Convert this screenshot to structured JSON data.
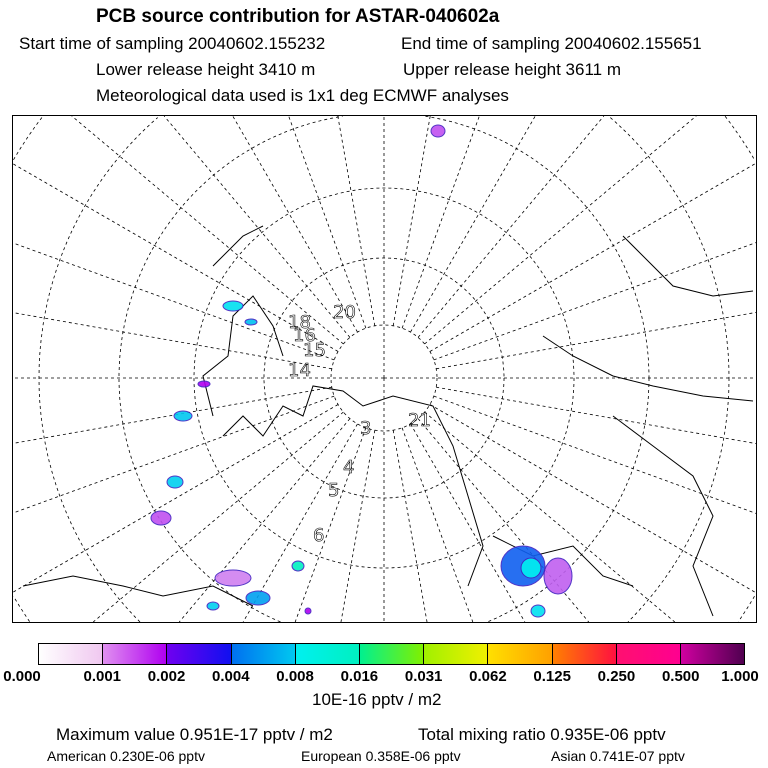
{
  "title": "PCB source contribution for ASTAR-040602a",
  "header": {
    "start": "Start time of sampling 20040602.155232",
    "end": "End time of sampling 20040602.155651",
    "lower": "Lower release height 3410 m",
    "upper": "Upper release height 3611 m",
    "met": "Meteorological data used is 1x1 deg ECMWF analyses"
  },
  "map": {
    "labels": [
      "20",
      "18",
      "16",
      "15",
      "14",
      "4",
      "5",
      "6",
      "21",
      "3"
    ]
  },
  "colorbar": {
    "ticks": [
      "0.000",
      "0.001",
      "0.002",
      "0.004",
      "0.008",
      "0.016",
      "0.031",
      "0.062",
      "0.125",
      "0.250",
      "0.500",
      "1.000"
    ],
    "segments": [
      [
        "#ffffff",
        "#f0c8f0"
      ],
      [
        "#e090f0",
        "#b000f0"
      ],
      [
        "#7000f0",
        "#1010f0"
      ],
      [
        "#0070f0",
        "#00c8f0"
      ],
      [
        "#00f0f0",
        "#00f0c0"
      ],
      [
        "#00f090",
        "#80f000"
      ],
      [
        "#a0f000",
        "#f0f000"
      ],
      [
        "#ffe000",
        "#ffa000"
      ],
      [
        "#ff8000",
        "#ff1040"
      ],
      [
        "#ff1070",
        "#ff0090"
      ],
      [
        "#d000a0",
        "#500050"
      ]
    ],
    "unit": "10E-16 pptv / m2"
  },
  "footer": {
    "max": "Maximum value  0.951E-17 pptv / m2",
    "total": "Total mixing ratio  0.935E-06 pptv",
    "american": "American  0.230E-06 pptv",
    "european": "European  0.358E-06 pptv",
    "asian": "Asian  0.741E-07 pptv"
  }
}
